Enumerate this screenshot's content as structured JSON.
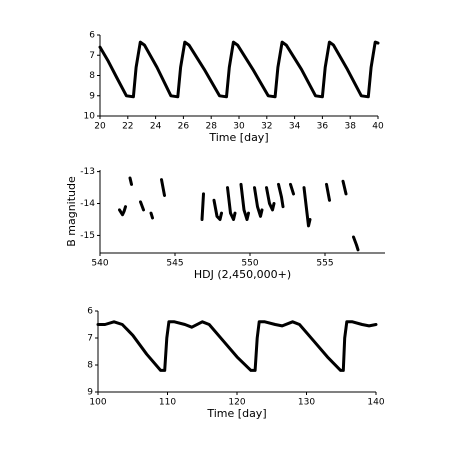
{
  "chart_data": [
    {
      "type": "line",
      "xlabel": "Time [day]",
      "x": [
        20,
        20.6,
        21.2,
        21.9,
        22.4,
        22.6,
        22.9,
        23.2,
        24.1,
        25.1,
        25.6,
        25.8,
        26.1,
        26.4,
        27.5,
        28.6,
        29.1,
        29.3,
        29.6,
        29.9,
        31,
        32.1,
        32.6,
        32.8,
        33.1,
        33.4,
        34.5,
        35.5,
        36,
        36.2,
        36.5,
        36.8,
        37.8,
        38.8,
        39.3,
        39.5,
        39.8,
        40
      ],
      "values": [
        6.6,
        7.3,
        8.1,
        9.0,
        9.05,
        7.6,
        6.35,
        6.5,
        7.6,
        9.0,
        9.05,
        7.6,
        6.35,
        6.5,
        7.7,
        9.0,
        9.05,
        7.6,
        6.35,
        6.5,
        7.7,
        9.0,
        9.05,
        7.6,
        6.35,
        6.5,
        7.7,
        9.0,
        9.05,
        7.6,
        6.35,
        6.5,
        7.7,
        9.0,
        9.05,
        7.6,
        6.35,
        6.4
      ],
      "color": "#000000",
      "xlim": [
        20,
        40
      ],
      "ylim": [
        10,
        6
      ],
      "xticks": [
        20,
        22,
        24,
        26,
        28,
        30,
        32,
        34,
        36,
        38,
        40
      ],
      "yticks": [
        6,
        7,
        8,
        9,
        10
      ]
    },
    {
      "type": "line",
      "xlabel": "HDJ (2,450,000+)",
      "ylabel": "B magnitude",
      "x": [
        541.3,
        541.5,
        541.6,
        541.7,
        null,
        542.0,
        542.1,
        null,
        542.7,
        542.9,
        null,
        543.4,
        543.5,
        null,
        544.1,
        544.3,
        null,
        546.8,
        546.9,
        null,
        547.6,
        547.8,
        548.0,
        548.1,
        null,
        548.5,
        548.7,
        548.9,
        549.0,
        null,
        549.4,
        549.6,
        549.8,
        549.9,
        null,
        550.3,
        550.5,
        550.7,
        550.8,
        null,
        551.1,
        551.3,
        551.5,
        551.6,
        null,
        551.9,
        552.1,
        552.2,
        null,
        552.7,
        552.9,
        null,
        553.6,
        553.8,
        553.9,
        554.0,
        null,
        555.1,
        555.3,
        null,
        556.2,
        556.4,
        null,
        556.9,
        557.1,
        557.2
      ],
      "values": [
        -14.2,
        -14.35,
        -14.25,
        -14.1,
        null,
        -13.2,
        -13.4,
        null,
        -13.95,
        -14.2,
        null,
        -14.3,
        -14.45,
        null,
        -13.25,
        -13.75,
        null,
        -14.5,
        -13.7,
        null,
        -13.9,
        -14.4,
        -14.5,
        -14.3,
        null,
        -13.5,
        -14.3,
        -14.5,
        -14.3,
        null,
        -13.4,
        -14.2,
        -14.5,
        -14.3,
        null,
        -13.5,
        -14.1,
        -14.4,
        -14.2,
        null,
        -13.5,
        -14.0,
        -14.2,
        -14.0,
        null,
        -13.4,
        -13.8,
        -14.1,
        null,
        -13.4,
        -13.7,
        null,
        -13.5,
        -14.3,
        -14.7,
        -14.5,
        null,
        -13.4,
        -13.9,
        null,
        -13.3,
        -13.7,
        null,
        -15.05,
        -15.3,
        -15.45
      ],
      "color": "#000000",
      "xlim": [
        540,
        559
      ],
      "ylim": [
        -15.55,
        -12.95
      ],
      "xticks": [
        540,
        545,
        550,
        555
      ],
      "yticks": [
        -13,
        -14,
        -15
      ]
    },
    {
      "type": "line",
      "xlabel": "Time [day]",
      "x": [
        100,
        101,
        102.3,
        103.5,
        105,
        107,
        109,
        109.6,
        109.9,
        110.2,
        111,
        112.5,
        113.5,
        115,
        116,
        118,
        120,
        122,
        122.6,
        122.9,
        123.2,
        124,
        125.5,
        126.5,
        128,
        129,
        131,
        133,
        134.9,
        135.3,
        135.5,
        135.8,
        136.6,
        138,
        139,
        140
      ],
      "values": [
        6.5,
        6.5,
        6.4,
        6.5,
        6.9,
        7.6,
        8.2,
        8.2,
        7.0,
        6.4,
        6.4,
        6.5,
        6.6,
        6.4,
        6.5,
        7.1,
        7.7,
        8.2,
        8.2,
        7.0,
        6.4,
        6.4,
        6.5,
        6.55,
        6.4,
        6.5,
        7.1,
        7.7,
        8.2,
        8.2,
        7.0,
        6.4,
        6.4,
        6.5,
        6.55,
        6.5
      ],
      "color": "#000000",
      "xlim": [
        100,
        140
      ],
      "ylim": [
        9,
        6
      ],
      "xticks": [
        100,
        110,
        120,
        130,
        140
      ],
      "yticks": [
        6,
        7,
        8,
        9
      ]
    }
  ]
}
